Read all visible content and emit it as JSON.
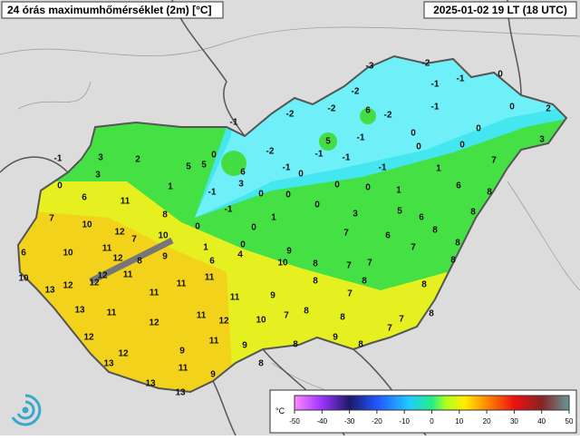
{
  "header": {
    "title": "24 órás maximumhőmérséklet (2m) [°C]",
    "timestamp": "2025-01-02 19 LT (18 UTC)"
  },
  "station_values": [
    -3,
    -2,
    0,
    -1,
    -1,
    -2,
    -2,
    -1,
    0,
    2,
    6,
    -2,
    -1,
    -2,
    5,
    -1,
    0,
    0,
    3,
    -2,
    -1,
    -1,
    0,
    0,
    7,
    -1,
    -1,
    1,
    0,
    5,
    5,
    3,
    2,
    -1,
    6,
    3,
    0,
    3,
    1,
    0,
    0,
    0,
    1,
    6,
    8,
    -1,
    0,
    0,
    -1,
    0,
    6,
    11,
    8,
    3,
    5,
    6,
    8,
    7,
    10,
    12,
    7,
    0,
    0,
    1,
    7,
    6,
    8,
    10,
    11,
    10,
    1,
    0,
    4,
    9,
    7,
    8,
    6,
    12,
    8,
    9,
    6,
    10,
    8,
    7,
    7,
    8,
    10,
    12,
    11,
    12,
    11,
    11,
    8,
    8,
    13,
    12,
    11,
    11,
    9,
    8,
    7,
    13,
    11,
    11,
    12,
    10,
    7,
    8,
    8,
    7,
    8,
    12,
    11,
    9,
    8,
    9,
    8,
    7,
    12,
    12,
    9,
    13,
    8,
    11,
    9,
    13,
    13
  ],
  "colorbar": {
    "unit": "°C",
    "ticks": [
      -50,
      -40,
      -30,
      -20,
      -10,
      0,
      10,
      20,
      30,
      40,
      50
    ]
  }
}
